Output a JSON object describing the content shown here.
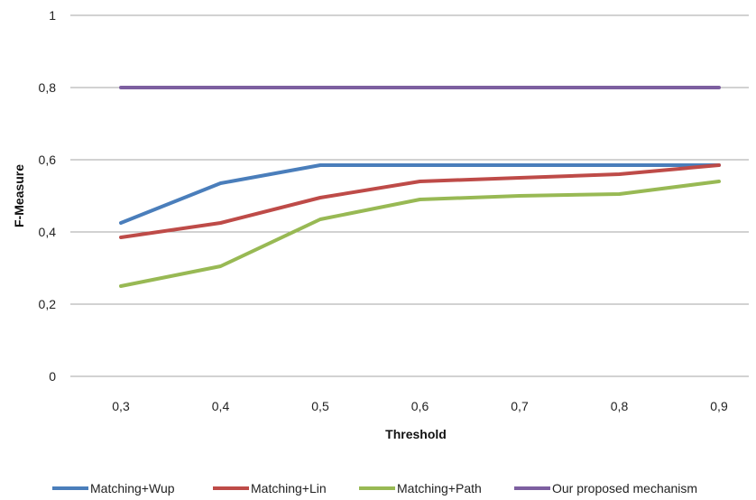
{
  "chart_data": {
    "type": "line",
    "title": "",
    "xlabel": "Threshold",
    "ylabel": "F-Measure",
    "categories": [
      "0,3",
      "0,4",
      "0,5",
      "0,6",
      "0,7",
      "0,8",
      "0,9"
    ],
    "y_ticks": [
      "0",
      "0,2",
      "0,4",
      "0,6",
      "0,8",
      "1"
    ],
    "ylim": [
      0,
      1
    ],
    "grid": true,
    "legend_position": "bottom",
    "series": [
      {
        "name": "Matching+Wup",
        "color": "#4a7ebb",
        "values": [
          0.425,
          0.535,
          0.585,
          0.585,
          0.585,
          0.585,
          0.585
        ]
      },
      {
        "name": "Matching+Lin",
        "color": "#be4b48",
        "values": [
          0.385,
          0.425,
          0.495,
          0.54,
          0.55,
          0.56,
          0.585
        ]
      },
      {
        "name": "Matching+Path",
        "color": "#98b954",
        "values": [
          0.25,
          0.305,
          0.435,
          0.49,
          0.5,
          0.505,
          0.54
        ]
      },
      {
        "name": "Our proposed mechanism",
        "color": "#7d5fa0",
        "values": [
          0.8,
          0.8,
          0.8,
          0.8,
          0.8,
          0.8,
          0.8
        ]
      }
    ]
  }
}
